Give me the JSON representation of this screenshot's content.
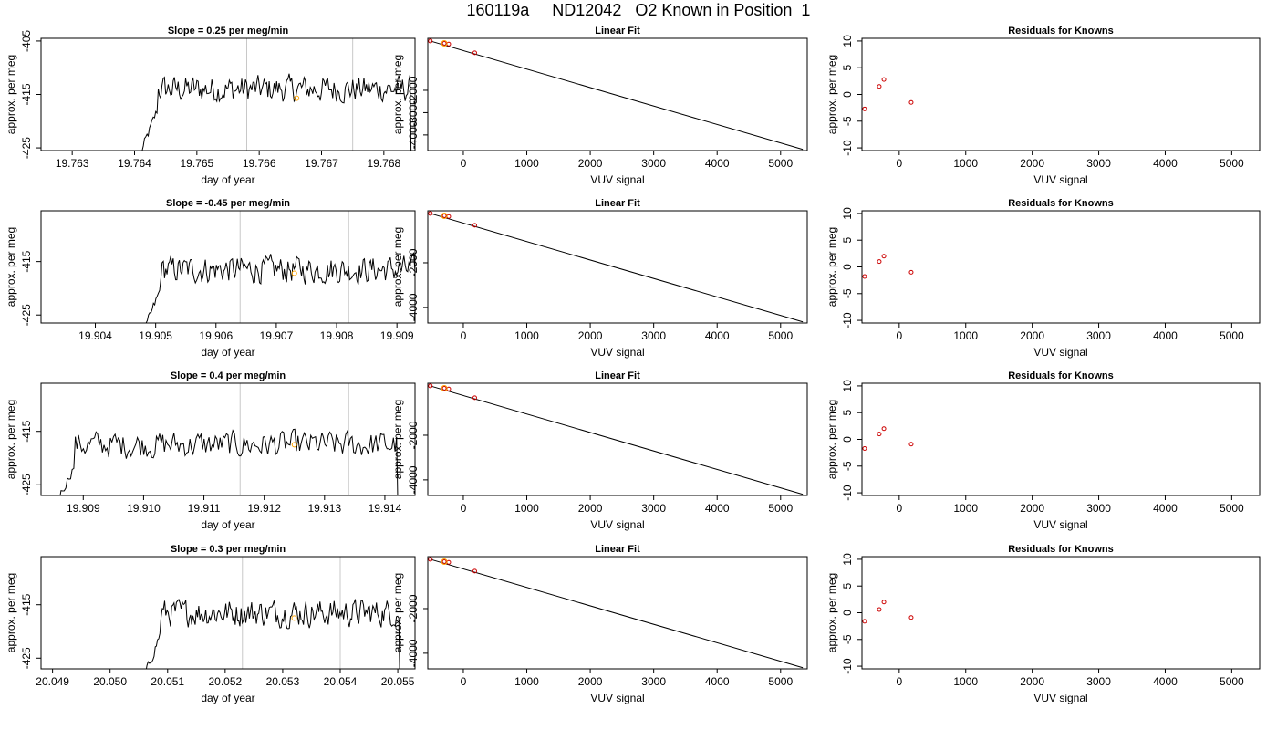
{
  "page": {
    "title": "160119a     ND12042   O2 Known in Position  1"
  },
  "colors": {
    "trace": "#000000",
    "marker": "#FFA500",
    "fit_points": "#CC0000",
    "vlines": "#C8C8C8"
  },
  "chart_data": [
    {
      "type": "line",
      "row": 1,
      "title": "Slope =  0.25  per meg/min",
      "xlabel": "day of year",
      "ylabel": "approx. per meg",
      "xlim": [
        19.7625,
        19.7685
      ],
      "ylim": [
        -425.5,
        -404.5
      ],
      "xticks": [
        "19.763",
        "19.764",
        "19.765",
        "19.766",
        "19.767",
        "19.768"
      ],
      "xtick_values": [
        19.763,
        19.764,
        19.765,
        19.766,
        19.767,
        19.768
      ],
      "yticks": [
        "-405",
        "-415",
        "-425"
      ],
      "ytick_values": [
        -405,
        -415,
        -425
      ],
      "vlines": [
        19.7658,
        19.7675
      ],
      "marker": {
        "x": 19.7666,
        "y": -415.7
      },
      "trace_start": 19.7641,
      "trace_end": 19.7685,
      "trace_base": -414,
      "grid": false
    },
    {
      "type": "scatter",
      "row": 1,
      "title": "Linear Fit",
      "xlabel": "VUV signal",
      "ylabel": "approx. per meg",
      "xlim": [
        -560,
        5420
      ],
      "ylim": [
        -4700,
        330
      ],
      "xticks": [
        "0",
        "1000",
        "2000",
        "3000",
        "4000",
        "5000"
      ],
      "xtick_values": [
        0,
        1000,
        2000,
        3000,
        4000,
        5000
      ],
      "yticks": [
        "-2000",
        "-3000",
        "-4000"
      ],
      "ytick_values": [
        -2000,
        -3000,
        -4000
      ],
      "points": [
        {
          "x": -520,
          "y": 210
        },
        {
          "x": -300,
          "y": 105
        },
        {
          "x": -230,
          "y": 75
        },
        {
          "x": 180,
          "y": -320
        }
      ],
      "known_point": {
        "x": -300,
        "y": 105
      },
      "fit_line": {
        "x": [
          -520,
          5350
        ],
        "y": [
          210,
          -4650
        ]
      },
      "grid": false
    },
    {
      "type": "scatter",
      "row": 1,
      "title": "Residuals for Knowns",
      "xlabel": "VUV signal",
      "ylabel": "approx. per meg",
      "xlim": [
        -560,
        5420
      ],
      "ylim": [
        -10.5,
        10.5
      ],
      "xticks": [
        "0",
        "1000",
        "2000",
        "3000",
        "4000",
        "5000"
      ],
      "xtick_values": [
        0,
        1000,
        2000,
        3000,
        4000,
        5000
      ],
      "yticks": [
        "-10",
        "-5",
        "0",
        "5",
        "10"
      ],
      "ytick_values": [
        -10,
        -5,
        0,
        5,
        10
      ],
      "points": [
        {
          "x": -520,
          "y": -2.7
        },
        {
          "x": -300,
          "y": 1.5
        },
        {
          "x": -230,
          "y": 2.8
        },
        {
          "x": 180,
          "y": -1.5
        }
      ],
      "grid": false
    },
    {
      "type": "line",
      "row": 2,
      "title": "Slope =  -0.45  per meg/min",
      "xlabel": "day of year",
      "ylabel": "approx. per meg",
      "xlim": [
        19.9031,
        19.9093
      ],
      "ylim": [
        -426.5,
        -405.5
      ],
      "xticks": [
        "19.904",
        "19.905",
        "19.906",
        "19.907",
        "19.908",
        "19.909"
      ],
      "xtick_values": [
        19.904,
        19.905,
        19.906,
        19.907,
        19.908,
        19.909
      ],
      "yticks": [
        "-415",
        "-425"
      ],
      "ytick_values": [
        -415,
        -425
      ],
      "vlines": [
        19.9064,
        19.9082
      ],
      "marker": {
        "x": 19.9073,
        "y": -417.2
      },
      "trace_start": 19.9048,
      "trace_end": 19.9093,
      "trace_base": -416.5,
      "grid": false
    },
    {
      "type": "scatter",
      "row": 2,
      "title": "Linear Fit",
      "xlabel": "VUV signal",
      "ylabel": "approx. per meg",
      "xlim": [
        -560,
        5420
      ],
      "ylim": [
        -4700,
        330
      ],
      "xticks": [
        "0",
        "1000",
        "2000",
        "3000",
        "4000",
        "5000"
      ],
      "xtick_values": [
        0,
        1000,
        2000,
        3000,
        4000,
        5000
      ],
      "yticks": [
        "-2000",
        "-4000"
      ],
      "ytick_values": [
        -2000,
        -4000
      ],
      "points": [
        {
          "x": -520,
          "y": 210
        },
        {
          "x": -300,
          "y": 105
        },
        {
          "x": -230,
          "y": 75
        },
        {
          "x": 180,
          "y": -320
        }
      ],
      "known_point": {
        "x": -300,
        "y": 105
      },
      "fit_line": {
        "x": [
          -520,
          5350
        ],
        "y": [
          210,
          -4650
        ]
      },
      "grid": false
    },
    {
      "type": "scatter",
      "row": 2,
      "title": "Residuals for Knowns",
      "xlabel": "VUV signal",
      "ylabel": "approx. per meg",
      "xlim": [
        -560,
        5420
      ],
      "ylim": [
        -10.5,
        10.5
      ],
      "xticks": [
        "0",
        "1000",
        "2000",
        "3000",
        "4000",
        "5000"
      ],
      "xtick_values": [
        0,
        1000,
        2000,
        3000,
        4000,
        5000
      ],
      "yticks": [
        "-10",
        "-5",
        "0",
        "5",
        "10"
      ],
      "ytick_values": [
        -10,
        -5,
        0,
        5,
        10
      ],
      "points": [
        {
          "x": -520,
          "y": -1.8
        },
        {
          "x": -300,
          "y": 1.0
        },
        {
          "x": -230,
          "y": 2.0
        },
        {
          "x": 180,
          "y": -1.0
        }
      ],
      "grid": false
    },
    {
      "type": "line",
      "row": 3,
      "title": "Slope =  0.4  per meg/min",
      "xlabel": "day of year",
      "ylabel": "approx. per meg",
      "xlim": [
        19.9083,
        19.9145
      ],
      "ylim": [
        -427,
        -406
      ],
      "xticks": [
        "19.909",
        "19.910",
        "19.911",
        "19.912",
        "19.913",
        "19.914"
      ],
      "xtick_values": [
        19.909,
        19.91,
        19.911,
        19.912,
        19.913,
        19.914
      ],
      "yticks": [
        "-415",
        "-425"
      ],
      "ytick_values": [
        -415,
        -425
      ],
      "vlines": [
        19.9116,
        19.9134
      ],
      "marker": {
        "x": 19.9125,
        "y": -417.5
      },
      "trace_start": 19.9085,
      "trace_end": 19.9143,
      "trace_base": -417.5,
      "grid": false
    },
    {
      "type": "scatter",
      "row": 3,
      "title": "Linear Fit",
      "xlabel": "VUV signal",
      "ylabel": "approx. per meg",
      "xlim": [
        -560,
        5420
      ],
      "ylim": [
        -4700,
        330
      ],
      "xticks": [
        "0",
        "1000",
        "2000",
        "3000",
        "4000",
        "5000"
      ],
      "xtick_values": [
        0,
        1000,
        2000,
        3000,
        4000,
        5000
      ],
      "yticks": [
        "-2000",
        "-4000"
      ],
      "ytick_values": [
        -2000,
        -4000
      ],
      "points": [
        {
          "x": -520,
          "y": 210
        },
        {
          "x": -300,
          "y": 105
        },
        {
          "x": -230,
          "y": 75
        },
        {
          "x": 180,
          "y": -320
        }
      ],
      "known_point": {
        "x": -300,
        "y": 105
      },
      "fit_line": {
        "x": [
          -520,
          5350
        ],
        "y": [
          210,
          -4650
        ]
      },
      "grid": false
    },
    {
      "type": "scatter",
      "row": 3,
      "title": "Residuals for Knowns",
      "xlabel": "VUV signal",
      "ylabel": "approx. per meg",
      "xlim": [
        -560,
        5420
      ],
      "ylim": [
        -10.5,
        10.5
      ],
      "xticks": [
        "0",
        "1000",
        "2000",
        "3000",
        "4000",
        "5000"
      ],
      "xtick_values": [
        0,
        1000,
        2000,
        3000,
        4000,
        5000
      ],
      "yticks": [
        "-10",
        "-5",
        "0",
        "5",
        "10"
      ],
      "ytick_values": [
        -10,
        -5,
        0,
        5,
        10
      ],
      "points": [
        {
          "x": -520,
          "y": -1.7
        },
        {
          "x": -300,
          "y": 1.0
        },
        {
          "x": -230,
          "y": 2.0
        },
        {
          "x": 180,
          "y": -0.9
        }
      ],
      "grid": false
    },
    {
      "type": "line",
      "row": 4,
      "title": "Slope =  0.3  per meg/min",
      "xlabel": "day of year",
      "ylabel": "approx. per meg",
      "xlim": [
        20.0488,
        20.0553
      ],
      "ylim": [
        -427,
        -406
      ],
      "xticks": [
        "20.049",
        "20.050",
        "20.051",
        "20.052",
        "20.053",
        "20.054",
        "20.055"
      ],
      "xtick_values": [
        20.049,
        20.05,
        20.051,
        20.052,
        20.053,
        20.054,
        20.055
      ],
      "yticks": [
        "-415",
        "-425"
      ],
      "ytick_values": [
        -415,
        -425
      ],
      "vlines": [
        20.0523,
        20.054
      ],
      "marker": {
        "x": 20.0532,
        "y": -417.5
      },
      "trace_start": 20.0506,
      "trace_end": 20.0551,
      "trace_base": -416.5,
      "grid": false
    },
    {
      "type": "scatter",
      "row": 4,
      "title": "Linear Fit",
      "xlabel": "VUV signal",
      "ylabel": "approx. per meg",
      "xlim": [
        -560,
        5420
      ],
      "ylim": [
        -4700,
        330
      ],
      "xticks": [
        "0",
        "1000",
        "2000",
        "3000",
        "4000",
        "5000"
      ],
      "xtick_values": [
        0,
        1000,
        2000,
        3000,
        4000,
        5000
      ],
      "yticks": [
        "-2000",
        "-4000"
      ],
      "ytick_values": [
        -2000,
        -4000
      ],
      "points": [
        {
          "x": -520,
          "y": 210
        },
        {
          "x": -300,
          "y": 105
        },
        {
          "x": -230,
          "y": 75
        },
        {
          "x": 180,
          "y": -320
        }
      ],
      "known_point": {
        "x": -300,
        "y": 105
      },
      "fit_line": {
        "x": [
          -520,
          5350
        ],
        "y": [
          210,
          -4650
        ]
      },
      "grid": false
    },
    {
      "type": "scatter",
      "row": 4,
      "title": "Residuals for Knowns",
      "xlabel": "VUV signal",
      "ylabel": "approx. per meg",
      "xlim": [
        -560,
        5420
      ],
      "ylim": [
        -10.5,
        10.5
      ],
      "xticks": [
        "0",
        "1000",
        "2000",
        "3000",
        "4000",
        "5000"
      ],
      "xtick_values": [
        0,
        1000,
        2000,
        3000,
        4000,
        5000
      ],
      "yticks": [
        "-10",
        "-5",
        "0",
        "5",
        "10"
      ],
      "ytick_values": [
        -10,
        -5,
        0,
        5,
        10
      ],
      "points": [
        {
          "x": -520,
          "y": -1.6
        },
        {
          "x": -300,
          "y": 0.6
        },
        {
          "x": -230,
          "y": 2.0
        },
        {
          "x": 180,
          "y": -0.9
        }
      ],
      "grid": false
    }
  ]
}
